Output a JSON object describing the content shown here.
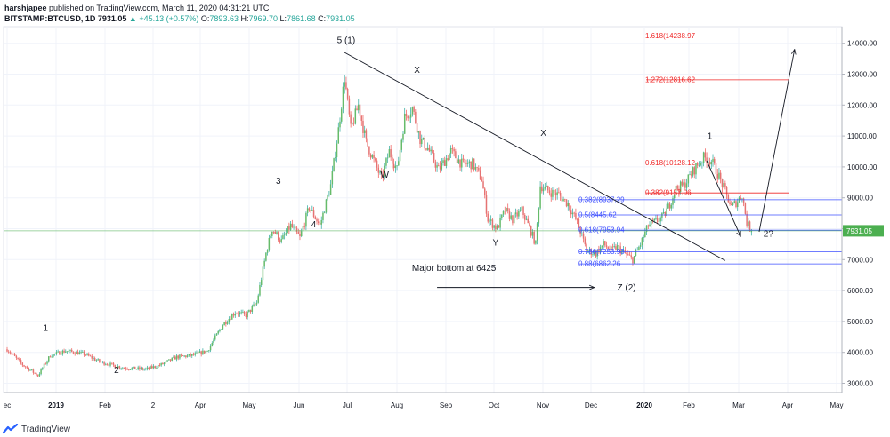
{
  "header": {
    "author": "harshjapee",
    "published": "published on TradingView.com, March 11, 2020 04:31:21 UTC",
    "symbol": "BITSTAMP:BTCUSD, 1D",
    "last": "7931.05",
    "change": "▲ +45.13 (+0.57%)",
    "o_label": "O:",
    "o": "7893.63",
    "h_label": "H:",
    "h": "7969.70",
    "l_label": "L:",
    "l": "7861.68",
    "c_label": "C:",
    "c": "7931.05"
  },
  "footer": {
    "brand": "TradingView"
  },
  "colors": {
    "up": "#26a69a",
    "down": "#ef5350",
    "up_fill": "#66bb6a",
    "down_fill": "#e57373",
    "fib_blue": "#3f51ff",
    "fib_red": "#ef2828",
    "price_line": "#4caf50",
    "annotation": "#131722"
  },
  "chart_data": {
    "type": "candlestick",
    "symbol": "BITSTAMP:BTCUSD",
    "interval": "1D",
    "x_ticks": [
      "ec",
      "2019",
      "Feb",
      "2",
      "Apr",
      "May",
      "Jun",
      "Jul",
      "Aug",
      "Sep",
      "Oct",
      "Nov",
      "Dec",
      "2020",
      "Feb",
      "Mar",
      "Apr",
      "May"
    ],
    "y_ticks": [
      "3000.00",
      "4000.00",
      "5000.00",
      "6000.00",
      "7000.00",
      "8000.00",
      "9000.00",
      "10000.00",
      "11000.00",
      "12000.00",
      "13000.00",
      "14000.00"
    ],
    "ylim": [
      2500,
      14900
    ],
    "last_price_label": "7931.05",
    "last_price": 7931.05,
    "price_path": [
      {
        "x": 0,
        "y": 4100
      },
      {
        "x": 10,
        "y": 3600
      },
      {
        "x": 20,
        "y": 3250
      },
      {
        "x": 28,
        "y": 3900
      },
      {
        "x": 38,
        "y": 4050
      },
      {
        "x": 50,
        "y": 3950
      },
      {
        "x": 60,
        "y": 3700
      },
      {
        "x": 75,
        "y": 3500
      },
      {
        "x": 90,
        "y": 3450
      },
      {
        "x": 100,
        "y": 3600
      },
      {
        "x": 110,
        "y": 3850
      },
      {
        "x": 120,
        "y": 3900
      },
      {
        "x": 130,
        "y": 4050
      },
      {
        "x": 140,
        "y": 4900
      },
      {
        "x": 148,
        "y": 5300
      },
      {
        "x": 155,
        "y": 5200
      },
      {
        "x": 162,
        "y": 5600
      },
      {
        "x": 168,
        "y": 7200
      },
      {
        "x": 172,
        "y": 8000
      },
      {
        "x": 178,
        "y": 7600
      },
      {
        "x": 184,
        "y": 8100
      },
      {
        "x": 190,
        "y": 7700
      },
      {
        "x": 196,
        "y": 8700
      },
      {
        "x": 203,
        "y": 8100
      },
      {
        "x": 210,
        "y": 9400
      },
      {
        "x": 215,
        "y": 11200
      },
      {
        "x": 219,
        "y": 12900
      },
      {
        "x": 223,
        "y": 11200
      },
      {
        "x": 228,
        "y": 12000
      },
      {
        "x": 233,
        "y": 10800
      },
      {
        "x": 238,
        "y": 10200
      },
      {
        "x": 243,
        "y": 9600
      },
      {
        "x": 248,
        "y": 10500
      },
      {
        "x": 253,
        "y": 9900
      },
      {
        "x": 258,
        "y": 11600
      },
      {
        "x": 263,
        "y": 11900
      },
      {
        "x": 268,
        "y": 10900
      },
      {
        "x": 273,
        "y": 10600
      },
      {
        "x": 280,
        "y": 9900
      },
      {
        "x": 288,
        "y": 10500
      },
      {
        "x": 295,
        "y": 10100
      },
      {
        "x": 302,
        "y": 10100
      },
      {
        "x": 308,
        "y": 9600
      },
      {
        "x": 312,
        "y": 8300
      },
      {
        "x": 318,
        "y": 8000
      },
      {
        "x": 323,
        "y": 8600
      },
      {
        "x": 328,
        "y": 8300
      },
      {
        "x": 334,
        "y": 8600
      },
      {
        "x": 340,
        "y": 7900
      },
      {
        "x": 343,
        "y": 7500
      },
      {
        "x": 346,
        "y": 9400
      },
      {
        "x": 352,
        "y": 9200
      },
      {
        "x": 358,
        "y": 9100
      },
      {
        "x": 364,
        "y": 8800
      },
      {
        "x": 370,
        "y": 8200
      },
      {
        "x": 376,
        "y": 7300
      },
      {
        "x": 382,
        "y": 7200
      },
      {
        "x": 387,
        "y": 7500
      },
      {
        "x": 392,
        "y": 7300
      },
      {
        "x": 396,
        "y": 7400
      },
      {
        "x": 402,
        "y": 7150
      },
      {
        "x": 406,
        "y": 7000
      },
      {
        "x": 411,
        "y": 7500
      },
      {
        "x": 416,
        "y": 8100
      },
      {
        "x": 420,
        "y": 8200
      },
      {
        "x": 426,
        "y": 8400
      },
      {
        "x": 430,
        "y": 8800
      },
      {
        "x": 434,
        "y": 9300
      },
      {
        "x": 439,
        "y": 9400
      },
      {
        "x": 443,
        "y": 9700
      },
      {
        "x": 447,
        "y": 10000
      },
      {
        "x": 452,
        "y": 10300
      },
      {
        "x": 457,
        "y": 10200
      },
      {
        "x": 461,
        "y": 9800
      },
      {
        "x": 466,
        "y": 9200
      },
      {
        "x": 470,
        "y": 8700
      },
      {
        "x": 474,
        "y": 8900
      },
      {
        "x": 477,
        "y": 9100
      },
      {
        "x": 480,
        "y": 8200
      },
      {
        "x": 483,
        "y": 7931
      }
    ],
    "fib_levels": [
      {
        "label": "1.618(14238.97",
        "value": 14238.97,
        "color": "red"
      },
      {
        "label": "1.272(12816.62",
        "value": 12816.62,
        "color": "red"
      },
      {
        "label": "0.618(10128.12",
        "value": 10128.12,
        "color": "red"
      },
      {
        "label": "0.382(9157.96",
        "value": 9157.96,
        "color": "red"
      },
      {
        "label": "0.382(8937.29",
        "value": 8937.29,
        "color": "blue"
      },
      {
        "label": "0.5(8445.62",
        "value": 8445.62,
        "color": "blue"
      },
      {
        "label": "0.618(7953.94",
        "value": 7953.94,
        "color": "blue"
      },
      {
        "label": "0.786(7253.93",
        "value": 7253.93,
        "color": "blue"
      },
      {
        "label": "0.88(6862.26",
        "value": 6862.26,
        "color": "blue"
      }
    ],
    "annotations": [
      "5 (1)",
      "X",
      "X",
      "W",
      "Y",
      "Z (2)",
      "3",
      "4",
      "1",
      "2",
      "1",
      "2?",
      "Major bottom at 6425"
    ]
  }
}
